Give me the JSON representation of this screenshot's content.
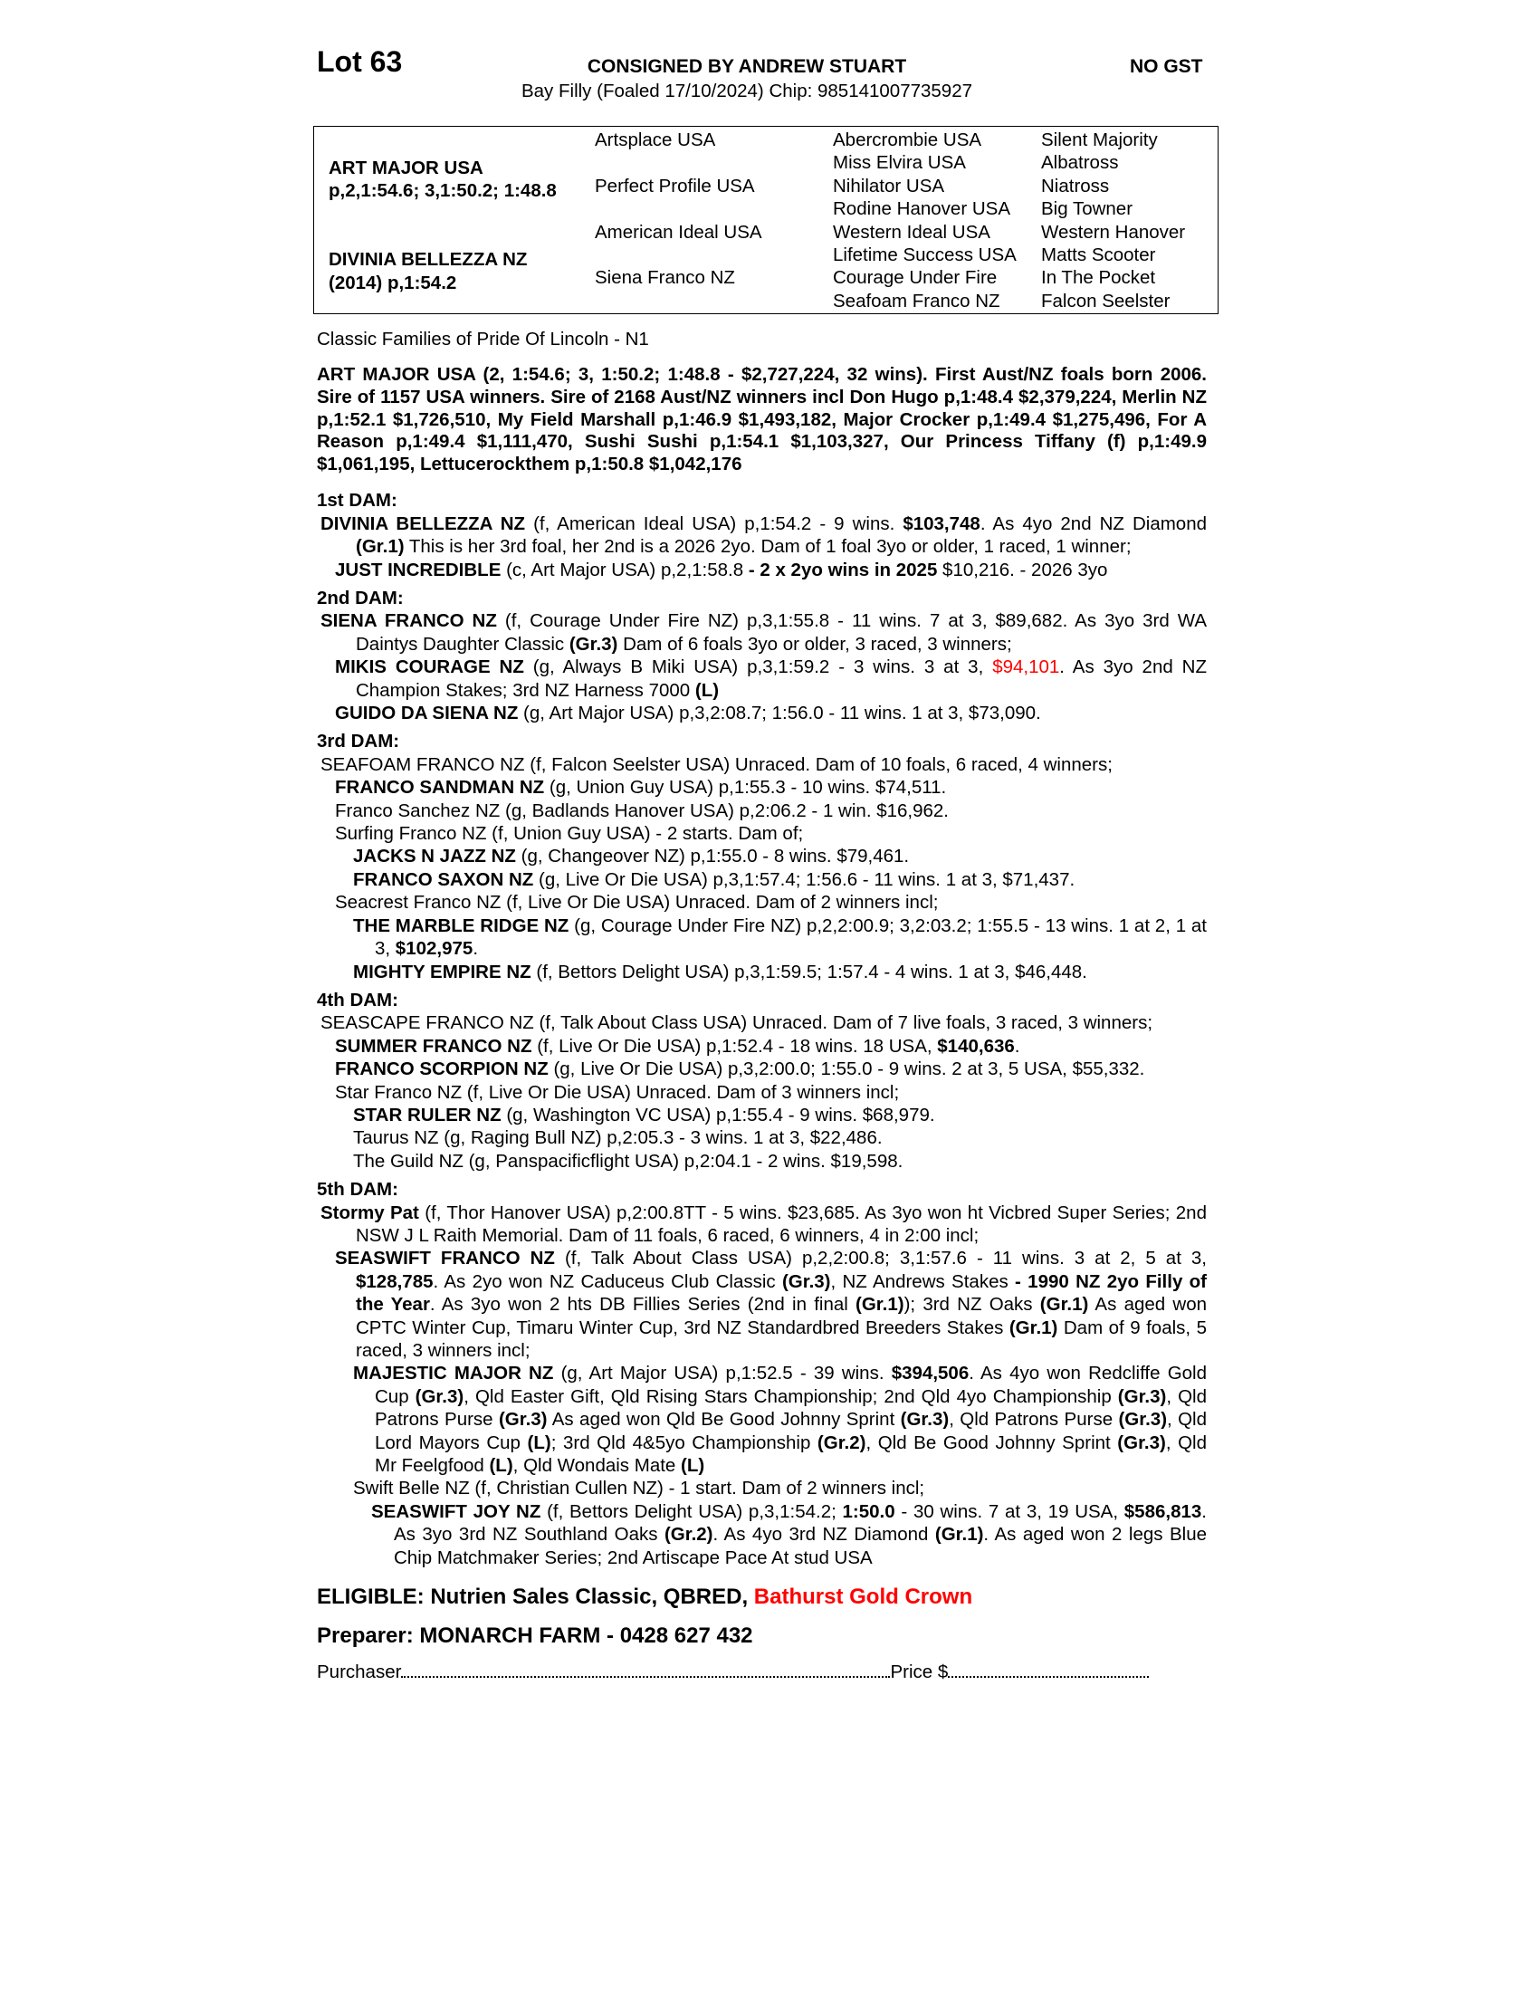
{
  "header": {
    "lot": "Lot 63",
    "consigned": "CONSIGNED BY ANDREW STUART",
    "gst": "NO GST",
    "description": "Bay Filly (Foaled 17/10/2024) Chip: 985141007735927"
  },
  "pedigree": {
    "sire": "ART MAJOR USA",
    "sire_record": "p,2,1:54.6; 3,1:50.2; 1:48.8",
    "dam": "DIVINIA BELLEZZA NZ",
    "dam_record": "(2014) p,1:54.2",
    "gen2": [
      "Artsplace USA",
      "Perfect Profile USA",
      "American Ideal USA",
      "Siena Franco NZ"
    ],
    "gen3": [
      "Abercrombie USA",
      "Miss Elvira USA",
      "Nihilator USA",
      "Rodine Hanover USA",
      "Western Ideal USA",
      "Lifetime Success USA",
      "Courage Under Fire",
      "Seafoam Franco NZ"
    ],
    "gen4": [
      "Silent Majority",
      "Albatross",
      "Niatross",
      "Big Towner",
      "Western Hanover",
      "Matts Scooter",
      "In The Pocket",
      "Falcon Seelster"
    ]
  },
  "families": "Classic Families of Pride Of Lincoln - N1",
  "sire_paragraph": "ART MAJOR USA (2, 1:54.6; 3, 1:50.2; 1:48.8 - $2,727,224, 32 wins). First Aust/NZ foals born 2006. Sire of 1157 USA winners. Sire of 2168 Aust/NZ winners incl Don Hugo p,1:48.4 $2,379,224, Merlin NZ p,1:52.1 $1,726,510, My Field Marshall p,1:46.9 $1,493,182, Major Crocker p,1:49.4 $1,275,496, For A Reason p,1:49.4 $1,111,470, Sushi Sushi p,1:54.1 $1,103,327, Our Princess Tiffany (f) p,1:49.9 $1,061,195, Lettucerockthem p,1:50.8 $1,042,176",
  "colors": {
    "highlight": "#ff0000",
    "text": "#000000"
  },
  "sections": [
    {
      "heading": "1st DAM:",
      "entries": [
        {
          "level": 0,
          "segs": [
            {
              "t": "DIVINIA BELLEZZA NZ",
              "s": "b"
            },
            {
              "t": " (f, American Ideal USA) p,1:54.2 - 9 wins. "
            },
            {
              "t": "$103,748",
              "s": "b"
            },
            {
              "t": ". As 4yo 2nd NZ Diamond "
            },
            {
              "t": "(Gr.1)",
              "s": "b"
            },
            {
              "t": " This is her 3rd foal, her 2nd is a 2026 2yo. Dam of 1 foal 3yo or older, 1 raced, 1 winner;"
            }
          ]
        },
        {
          "level": 1,
          "segs": [
            {
              "t": "JUST INCREDIBLE",
              "s": "b"
            },
            {
              "t": " (c, Art Major USA) p,2,1:58.8 "
            },
            {
              "t": "- 2 x 2yo wins in 2025",
              "s": "b"
            },
            {
              "t": " $10,216. - 2026 3yo"
            }
          ]
        }
      ]
    },
    {
      "heading": "2nd DAM:",
      "entries": [
        {
          "level": 0,
          "segs": [
            {
              "t": "SIENA FRANCO NZ",
              "s": "b"
            },
            {
              "t": " (f, Courage Under Fire NZ) p,3,1:55.8 - 11 wins. 7 at 3, $89,682. As 3yo 3rd WA Daintys Daughter Classic "
            },
            {
              "t": "(Gr.3)",
              "s": "b"
            },
            {
              "t": " Dam of 6 foals 3yo or older, 3 raced, 3 winners;"
            }
          ]
        },
        {
          "level": 1,
          "segs": [
            {
              "t": "MIKIS COURAGE NZ",
              "s": "b"
            },
            {
              "t": " (g, Always B Miki USA) p,3,1:59.2 - 3 wins. 3 at 3, "
            },
            {
              "t": "$94,101",
              "s": "r"
            },
            {
              "t": ". As 3yo 2nd NZ Champion Stakes; 3rd NZ Harness 7000 "
            },
            {
              "t": "(L)",
              "s": "b"
            }
          ]
        },
        {
          "level": 1,
          "segs": [
            {
              "t": "GUIDO DA SIENA NZ",
              "s": "b"
            },
            {
              "t": " (g, Art Major USA) p,3,2:08.7; 1:56.0 - 11 wins. 1 at 3, $73,090."
            }
          ]
        }
      ]
    },
    {
      "heading": "3rd DAM:",
      "entries": [
        {
          "level": 0,
          "segs": [
            {
              "t": "SEAFOAM FRANCO NZ (f, Falcon Seelster USA) Unraced. Dam of 10 foals, 6 raced, 4 winners;"
            }
          ]
        },
        {
          "level": 1,
          "segs": [
            {
              "t": "FRANCO SANDMAN NZ",
              "s": "b"
            },
            {
              "t": " (g, Union Guy USA) p,1:55.3 - 10 wins. $74,511."
            }
          ]
        },
        {
          "level": 1,
          "segs": [
            {
              "t": "Franco Sanchez NZ (g, Badlands Hanover USA) p,2:06.2 - 1 win. $16,962."
            }
          ]
        },
        {
          "level": 1,
          "segs": [
            {
              "t": "Surfing Franco NZ (f, Union Guy USA) - 2 starts. Dam of;"
            }
          ]
        },
        {
          "level": 2,
          "segs": [
            {
              "t": "JACKS N JAZZ NZ",
              "s": "b"
            },
            {
              "t": " (g, Changeover NZ) p,1:55.0 - 8 wins. $79,461."
            }
          ]
        },
        {
          "level": 2,
          "segs": [
            {
              "t": "FRANCO SAXON NZ",
              "s": "b"
            },
            {
              "t": " (g, Live Or Die USA) p,3,1:57.4; 1:56.6 - 11 wins. 1 at 3, $71,437."
            }
          ]
        },
        {
          "level": 1,
          "segs": [
            {
              "t": "Seacrest Franco NZ (f, Live Or Die USA) Unraced. Dam of 2 winners incl;"
            }
          ]
        },
        {
          "level": 2,
          "segs": [
            {
              "t": "THE MARBLE RIDGE NZ",
              "s": "b"
            },
            {
              "t": " (g, Courage Under Fire NZ) p,2,2:00.9; 3,2:03.2; 1:55.5 - 13 wins. 1 at 2, 1 at 3, "
            },
            {
              "t": "$102,975",
              "s": "b"
            },
            {
              "t": "."
            }
          ]
        },
        {
          "level": 2,
          "segs": [
            {
              "t": "MIGHTY EMPIRE NZ",
              "s": "b"
            },
            {
              "t": " (f, Bettors Delight USA) p,3,1:59.5; 1:57.4 - 4 wins. 1 at 3, $46,448."
            }
          ]
        }
      ]
    },
    {
      "heading": "4th DAM:",
      "entries": [
        {
          "level": 0,
          "segs": [
            {
              "t": "SEASCAPE FRANCO NZ (f, Talk About Class USA) Unraced. Dam of 7 live foals, 3 raced, 3 winners;"
            }
          ]
        },
        {
          "level": 1,
          "segs": [
            {
              "t": "SUMMER FRANCO NZ",
              "s": "b"
            },
            {
              "t": " (f, Live Or Die USA) p,1:52.4 - 18 wins. 18 USA, "
            },
            {
              "t": "$140,636",
              "s": "b"
            },
            {
              "t": "."
            }
          ]
        },
        {
          "level": 1,
          "segs": [
            {
              "t": "FRANCO SCORPION NZ",
              "s": "b"
            },
            {
              "t": " (g, Live Or Die USA) p,3,2:00.0; 1:55.0 - 9 wins. 2 at 3, 5 USA, $55,332."
            }
          ]
        },
        {
          "level": 1,
          "segs": [
            {
              "t": "Star Franco NZ (f, Live Or Die USA) Unraced. Dam of 3 winners incl;"
            }
          ]
        },
        {
          "level": 2,
          "segs": [
            {
              "t": "STAR RULER NZ",
              "s": "b"
            },
            {
              "t": " (g, Washington VC USA) p,1:55.4 - 9 wins. $68,979."
            }
          ]
        },
        {
          "level": 2,
          "segs": [
            {
              "t": "Taurus NZ (g, Raging Bull NZ) p,2:05.3 - 3 wins. 1 at 3, $22,486."
            }
          ]
        },
        {
          "level": 2,
          "segs": [
            {
              "t": "The Guild NZ (g, Panspacificflight USA) p,2:04.1 - 2 wins. $19,598."
            }
          ]
        }
      ]
    },
    {
      "heading": "5th DAM:",
      "entries": [
        {
          "level": 0,
          "segs": [
            {
              "t": "Stormy Pat",
              "s": "b"
            },
            {
              "t": " (f, Thor Hanover USA) p,2:00.8TT - 5 wins. $23,685. As 3yo won ht Vicbred Super Series; 2nd NSW J L Raith Memorial. Dam of 11 foals, 6 raced, 6 winners, 4 in 2:00 incl;"
            }
          ]
        },
        {
          "level": 1,
          "segs": [
            {
              "t": "SEASWIFT FRANCO NZ",
              "s": "b"
            },
            {
              "t": " (f, Talk About Class USA) p,2,2:00.8; 3,1:57.6 - 11 wins. 3 at 2, 5 at 3, "
            },
            {
              "t": "$128,785",
              "s": "b"
            },
            {
              "t": ". As 2yo won NZ Caduceus Club Classic "
            },
            {
              "t": "(Gr.3)",
              "s": "b"
            },
            {
              "t": ", NZ Andrews Stakes "
            },
            {
              "t": "- 1990 NZ 2yo Filly of the Year",
              "s": "b"
            },
            {
              "t": ". As 3yo won 2 hts DB Fillies Series (2nd in final "
            },
            {
              "t": "(Gr.1)",
              "s": "b"
            },
            {
              "t": "); 3rd NZ Oaks "
            },
            {
              "t": "(Gr.1)",
              "s": "b"
            },
            {
              "t": " As aged won CPTC Winter Cup, Timaru Winter Cup, 3rd NZ Standardbred Breeders Stakes "
            },
            {
              "t": "(Gr.1)",
              "s": "b"
            },
            {
              "t": " Dam of 9 foals, 5 raced, 3 winners incl;"
            }
          ]
        },
        {
          "level": 2,
          "segs": [
            {
              "t": "MAJESTIC MAJOR NZ",
              "s": "b"
            },
            {
              "t": " (g, Art Major USA) p,1:52.5 - 39 wins. "
            },
            {
              "t": "$394,506",
              "s": "b"
            },
            {
              "t": ". As 4yo won Redcliffe Gold Cup "
            },
            {
              "t": "(Gr.3)",
              "s": "b"
            },
            {
              "t": ", Qld Easter Gift, Qld Rising Stars Championship; 2nd Qld 4yo Championship "
            },
            {
              "t": "(Gr.3)",
              "s": "b"
            },
            {
              "t": ", Qld Patrons Purse "
            },
            {
              "t": "(Gr.3)",
              "s": "b"
            },
            {
              "t": " As aged won Qld Be Good Johnny Sprint "
            },
            {
              "t": "(Gr.3)",
              "s": "b"
            },
            {
              "t": ", Qld Patrons Purse "
            },
            {
              "t": "(Gr.3)",
              "s": "b"
            },
            {
              "t": ", Qld Lord Mayors Cup "
            },
            {
              "t": "(L)",
              "s": "b"
            },
            {
              "t": "; 3rd Qld 4&5yo Championship "
            },
            {
              "t": "(Gr.2)",
              "s": "b"
            },
            {
              "t": ", Qld Be Good Johnny Sprint "
            },
            {
              "t": "(Gr.3)",
              "s": "b"
            },
            {
              "t": ", Qld Mr Feelgfood "
            },
            {
              "t": "(L)",
              "s": "b"
            },
            {
              "t": ", Qld Wondais Mate "
            },
            {
              "t": "(L)",
              "s": "b"
            }
          ]
        },
        {
          "level": 2,
          "segs": [
            {
              "t": "Swift Belle NZ (f, Christian Cullen NZ) - 1 start. Dam of 2 winners incl;"
            }
          ]
        },
        {
          "level": 3,
          "segs": [
            {
              "t": "SEASWIFT JOY NZ",
              "s": "b"
            },
            {
              "t": " (f, Bettors Delight USA) p,3,1:54.2; "
            },
            {
              "t": "1:50.0",
              "s": "b"
            },
            {
              "t": " - 30 wins. 7 at 3, 19 USA, "
            },
            {
              "t": "$586,813",
              "s": "b"
            },
            {
              "t": ". As 3yo 3rd NZ Southland Oaks "
            },
            {
              "t": "(Gr.2)",
              "s": "b"
            },
            {
              "t": ". As 4yo 3rd NZ Diamond "
            },
            {
              "t": "(Gr.1)",
              "s": "b"
            },
            {
              "t": ". As aged won 2 legs Blue Chip Matchmaker Series; 2nd Artiscape Pace At stud USA"
            }
          ]
        }
      ]
    }
  ],
  "eligible": {
    "label": "ELIGIBLE: Nutrien Sales Classic, QBRED, ",
    "highlight": "Bathurst Gold Crown"
  },
  "preparer": "Preparer: MONARCH FARM - 0428 627 432",
  "purchase": {
    "purchaser_label": "Purchaser",
    "price_label": "Price $"
  }
}
